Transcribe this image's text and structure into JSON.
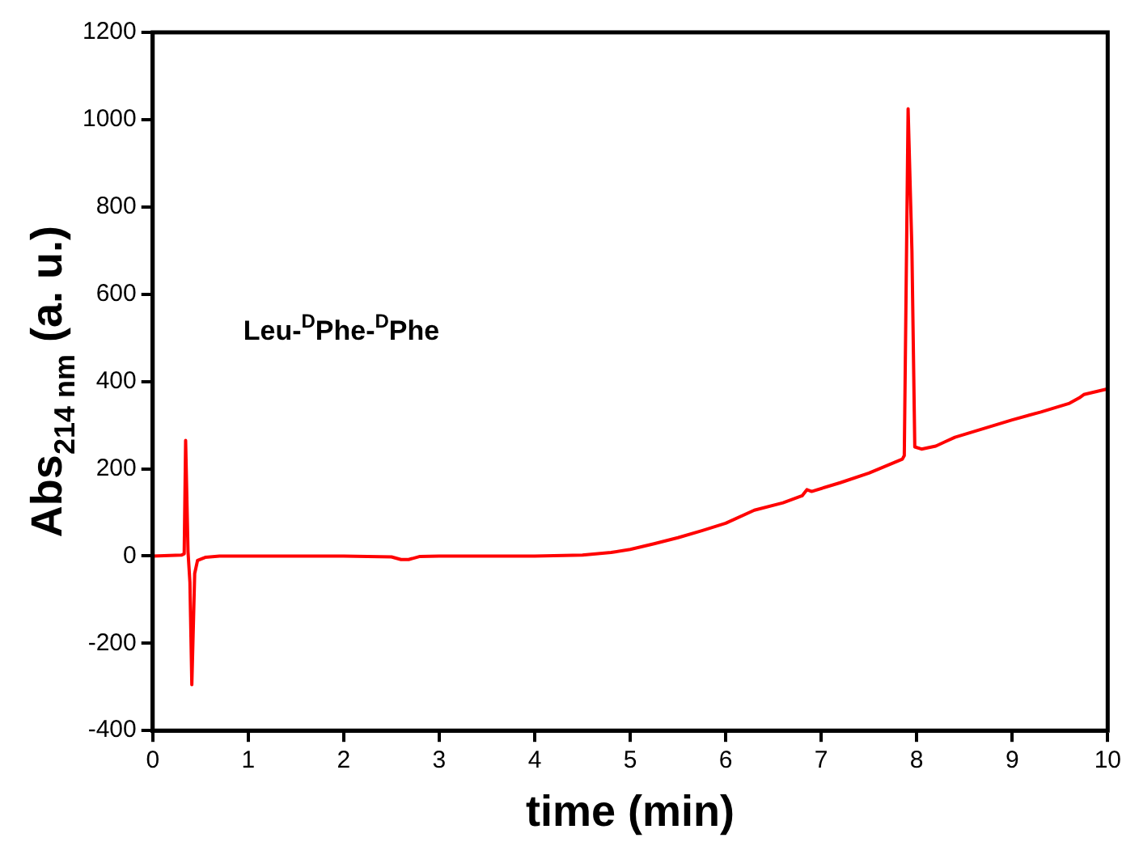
{
  "chart_data": {
    "type": "line",
    "xlabel": "time (min)",
    "ylabel": "Abs$_{214 nm}$ (a. u.)",
    "annotations": [
      "Leu-$^{D}$Phe-$^{D}$Phe"
    ],
    "xlim": [
      0,
      10
    ],
    "xticks": [
      0,
      1,
      2,
      3,
      4,
      5,
      6,
      7,
      8,
      9,
      10
    ],
    "ylim": [
      -400,
      1200
    ],
    "yticks": [
      -400,
      -200,
      0,
      200,
      400,
      600,
      800,
      1000,
      1200
    ],
    "grid": false,
    "legend": false,
    "marker": "none",
    "line_style": "solid",
    "series": [
      {
        "color": "#ff0000",
        "x": [
          0,
          0.3,
          0.33,
          0.345,
          0.37,
          0.39,
          0.41,
          0.44,
          0.47,
          0.55,
          0.7,
          1,
          1.5,
          2,
          2.5,
          2.6,
          2.68,
          2.8,
          3,
          3.5,
          4,
          4.5,
          4.8,
          5,
          5.25,
          5.5,
          5.75,
          6,
          6.3,
          6.6,
          6.8,
          6.85,
          6.9,
          7.2,
          7.5,
          7.85,
          7.87,
          7.91,
          7.95,
          7.98,
          8.05,
          8.2,
          8.3,
          8.4,
          8.7,
          9,
          9.3,
          9.6,
          9.7,
          9.75,
          10
        ],
        "values": [
          0,
          2,
          5,
          265,
          10,
          -60,
          -295,
          -40,
          -10,
          -3,
          0,
          0,
          0,
          0,
          -2,
          -8,
          -8,
          -1,
          0,
          0,
          0,
          2,
          8,
          15,
          28,
          42,
          58,
          75,
          105,
          122,
          138,
          152,
          148,
          168,
          190,
          222,
          230,
          1025,
          700,
          250,
          245,
          252,
          262,
          272,
          292,
          312,
          330,
          350,
          362,
          370,
          383
        ]
      }
    ]
  }
}
